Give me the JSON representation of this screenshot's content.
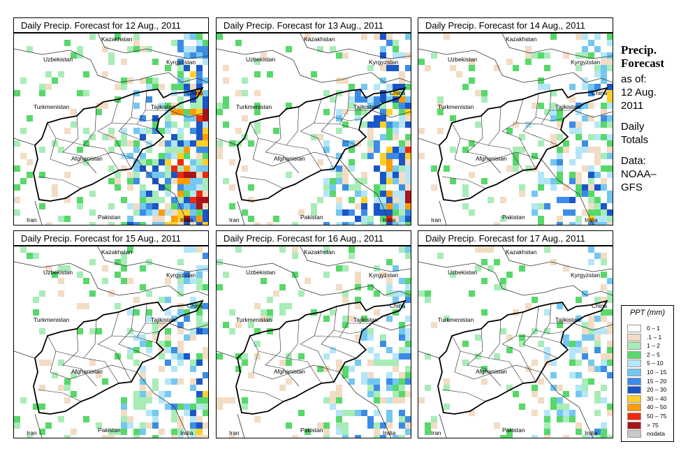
{
  "panels": [
    {
      "title": "Daily Precip. Forecast for  12 Aug., 2011",
      "intensity": 1.0
    },
    {
      "title": "Daily Precip. Forecast for  13 Aug., 2011",
      "intensity": 0.85
    },
    {
      "title": "Daily Precip. Forecast for  14 Aug., 2011",
      "intensity": 0.6
    },
    {
      "title": "Daily Precip. Forecast for  15 Aug., 2011",
      "intensity": 0.55
    },
    {
      "title": "Daily Precip. Forecast for  16 Aug., 2011",
      "intensity": 0.4
    },
    {
      "title": "Daily Precip. Forecast for  17 Aug., 2011",
      "intensity": 0.35
    }
  ],
  "map_labels": {
    "uzbekistan": "Uzbekistan",
    "kazakhstan": "Kazakhstan",
    "kyrgyzstan": "Kyrgyzstan",
    "turkmenistan": "Turkmenistan",
    "tajikistan": "Tajikistan",
    "china": "China",
    "afghanistan": "Afghanistan",
    "pakistan": "Pakistan",
    "iran": "Iran",
    "india": "India"
  },
  "sidebar": {
    "title_line1": "Precip.",
    "title_line2": "Forecast",
    "as_of_label": "as of:",
    "as_of_date1": "12 Aug.",
    "as_of_date2": "2011",
    "totals1": "Daily",
    "totals2": "Totals",
    "data1": "Data:",
    "data2": "NOAA–",
    "data3": "GFS"
  },
  "legend": {
    "title": "PPT (mm)",
    "items": [
      {
        "label": "0 – 1",
        "color": "#ffffff"
      },
      {
        "label": ".1 – 1",
        "color": "#f2dcc4"
      },
      {
        "label": "1 – 2",
        "color": "#a8ecb8"
      },
      {
        "label": "2 – 5",
        "color": "#58d86a"
      },
      {
        "label": "5 – 10",
        "color": "#b4e6f8"
      },
      {
        "label": "10 – 15",
        "color": "#74c8f0"
      },
      {
        "label": "15 – 20",
        "color": "#3c8ce6"
      },
      {
        "label": "20 – 30",
        "color": "#1a56c8"
      },
      {
        "label": "30 – 40",
        "color": "#ffd02a"
      },
      {
        "label": "40 – 50",
        "color": "#ff9a00"
      },
      {
        "label": "50 – 75",
        "color": "#ee2a0a"
      },
      {
        "label": "> 75",
        "color": "#a8141a"
      },
      {
        "label": "nodata",
        "color": "#c8c8c8"
      }
    ]
  }
}
